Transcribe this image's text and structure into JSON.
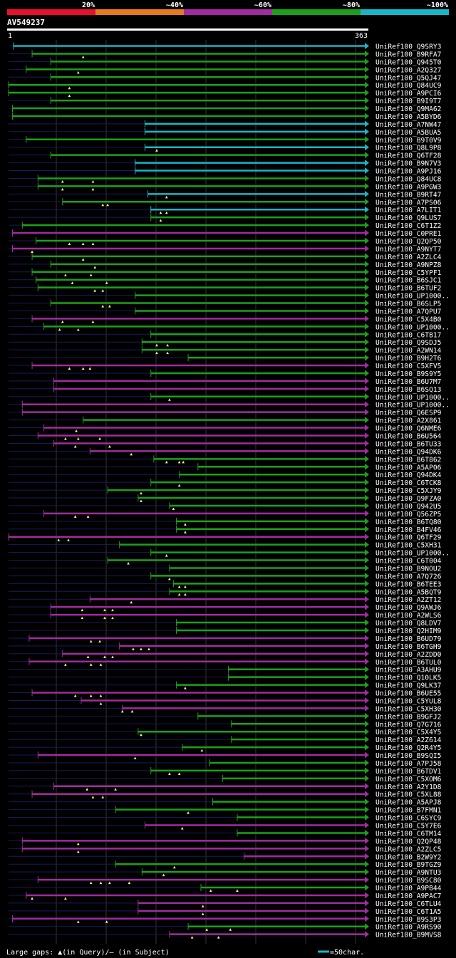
{
  "chart_data": {
    "type": "alignment-map",
    "title": "AV549237",
    "query_start_label": "1",
    "query_end_label": "363",
    "query_length": 363,
    "legend_bins": [
      {
        "label": "20%",
        "color": "#e8102a"
      },
      {
        "label": "~40%",
        "color": "#e67a1f"
      },
      {
        "label": "~60%",
        "color": "#a02ca0"
      },
      {
        "label": "~80%",
        "color": "#1ca01c"
      },
      {
        "label": "~100%",
        "color": "#19b6c6"
      }
    ],
    "colors": {
      "cyan": "#19b6c6",
      "green": "#1ca01c",
      "purple": "#a02ca0",
      "light_green": "#5fd05f",
      "marker": "#ffff88",
      "gap": "#1a1a60",
      "grid": "#333333"
    },
    "footer": {
      "gaps_text": "Large gaps: ▲(in Query)/— (in Subject)",
      "scale_text": "=50char."
    },
    "hits": [
      {
        "name": "UniRef100_Q9SRY3",
        "start": 5,
        "color": "cyan",
        "markers": []
      },
      {
        "name": "UniRef100_B9RFA7",
        "start": 24,
        "color": "green",
        "markers": [
          76
        ]
      },
      {
        "name": "UniRef100_Q945T0",
        "start": 43,
        "color": "green",
        "markers": []
      },
      {
        "name": "UniRef100_A2Q327",
        "start": 18,
        "color": "green",
        "markers": [
          71
        ]
      },
      {
        "name": "UniRef100_Q5QJ47",
        "start": 43,
        "color": "green",
        "markers": []
      },
      {
        "name": "UniRef100_Q84UC9",
        "start": 0,
        "color": "green",
        "markers": [
          62
        ]
      },
      {
        "name": "UniRef100_A9PCI6",
        "start": 0,
        "color": "green",
        "markers": [
          62
        ]
      },
      {
        "name": "UniRef100_B9I9T7",
        "start": 43,
        "color": "green",
        "markers": []
      },
      {
        "name": "UniRef100_Q9MA62",
        "start": 4,
        "color": "green",
        "markers": []
      },
      {
        "name": "UniRef100_A5BYD6",
        "start": 4,
        "color": "green",
        "markers": []
      },
      {
        "name": "UniRef100_A7NW47",
        "start": 139,
        "color": "cyan",
        "markers": []
      },
      {
        "name": "UniRef100_A5BUA5",
        "start": 139,
        "color": "cyan",
        "markers": []
      },
      {
        "name": "UniRef100_B9T0V9",
        "start": 18,
        "color": "green",
        "markers": []
      },
      {
        "name": "UniRef100_Q8L9P8",
        "start": 139,
        "color": "cyan",
        "markers": [
          151
        ]
      },
      {
        "name": "UniRef100_Q6TF28",
        "start": 43,
        "color": "green",
        "markers": []
      },
      {
        "name": "UniRef100_B9N7V3",
        "start": 129,
        "color": "cyan",
        "markers": []
      },
      {
        "name": "UniRef100_A9PJ16",
        "start": 129,
        "color": "cyan",
        "markers": []
      },
      {
        "name": "UniRef100_Q84UC8",
        "start": 30,
        "color": "green",
        "markers": [
          55,
          86
        ]
      },
      {
        "name": "UniRef100_A9PGW3",
        "start": 30,
        "color": "green",
        "markers": [
          55,
          86
        ]
      },
      {
        "name": "UniRef100_B9RT47",
        "start": 142,
        "color": "cyan",
        "markers": [
          161
        ]
      },
      {
        "name": "UniRef100_A7PS06",
        "start": 55,
        "color": "green",
        "markers": [
          96,
          101
        ]
      },
      {
        "name": "UniRef100_A7LIT1",
        "start": 145,
        "color": "cyan",
        "markers": [
          155,
          161
        ]
      },
      {
        "name": "UniRef100_Q9LUS7",
        "start": 145,
        "color": "green",
        "markers": [
          155
        ]
      },
      {
        "name": "UniRef100_C6T1Z2",
        "start": 14,
        "color": "green",
        "markers": []
      },
      {
        "name": "UniRef100_C0PRE1",
        "start": 4,
        "color": "purple",
        "markers": []
      },
      {
        "name": "UniRef100_Q2QP50",
        "start": 28,
        "color": "green",
        "markers": [
          62,
          76,
          86
        ]
      },
      {
        "name": "UniRef100_A9NYT7",
        "start": 4,
        "color": "purple",
        "markers": [
          24
        ]
      },
      {
        "name": "UniRef100_A2ZLC4",
        "start": 24,
        "color": "green",
        "markers": [
          76
        ]
      },
      {
        "name": "UniRef100_A9NPZ8",
        "start": 43,
        "color": "green",
        "markers": [
          88
        ]
      },
      {
        "name": "UniRef100_C5YPF1",
        "start": 24,
        "color": "green",
        "markers": [
          58,
          84
        ]
      },
      {
        "name": "UniRef100_B6SJC1",
        "start": 28,
        "color": "green",
        "markers": [
          65,
          100
        ]
      },
      {
        "name": "UniRef100_B6TUF2",
        "start": 30,
        "color": "green",
        "markers": [
          88,
          96
        ]
      },
      {
        "name": "UniRef100_UP1000..",
        "start": 129,
        "color": "green",
        "markers": []
      },
      {
        "name": "UniRef100_B6SLP5",
        "start": 43,
        "color": "green",
        "markers": [
          96,
          103
        ]
      },
      {
        "name": "UniRef100_A7QPU7",
        "start": 129,
        "color": "green",
        "markers": []
      },
      {
        "name": "UniRef100_C5X4B0",
        "start": 24,
        "color": "purple",
        "markers": [
          55,
          86
        ]
      },
      {
        "name": "UniRef100_UP1000..",
        "start": 36,
        "color": "green",
        "markers": [
          52,
          71
        ]
      },
      {
        "name": "UniRef100_C6TB17",
        "start": 145,
        "color": "green",
        "markers": []
      },
      {
        "name": "UniRef100_Q9SDJ5",
        "start": 136,
        "color": "green",
        "markers": [
          151,
          162
        ]
      },
      {
        "name": "UniRef100_A2WN14",
        "start": 136,
        "color": "green",
        "markers": [
          151,
          162
        ]
      },
      {
        "name": "UniRef100_B9H2T6",
        "start": 183,
        "color": "green",
        "markers": []
      },
      {
        "name": "UniRef100_C5XFV5",
        "start": 24,
        "color": "purple",
        "markers": [
          62,
          76,
          83
        ]
      },
      {
        "name": "UniRef100_B9S9Y5",
        "start": 145,
        "color": "green",
        "markers": []
      },
      {
        "name": "UniRef100_B6U7M7",
        "start": 46,
        "color": "purple",
        "markers": []
      },
      {
        "name": "UniRef100_B6SQ13",
        "start": 46,
        "color": "purple",
        "markers": []
      },
      {
        "name": "UniRef100_UP1000..",
        "start": 145,
        "color": "green",
        "markers": [
          164
        ]
      },
      {
        "name": "UniRef100_UP1000..",
        "start": 14,
        "color": "purple",
        "markers": []
      },
      {
        "name": "UniRef100_Q6ESP9",
        "start": 14,
        "color": "purple",
        "markers": []
      },
      {
        "name": "UniRef100_A2X861",
        "start": 76,
        "color": "green",
        "markers": []
      },
      {
        "name": "UniRef100_Q6NME6",
        "start": 36,
        "color": "purple",
        "markers": [
          69
        ]
      },
      {
        "name": "UniRef100_B6U564",
        "start": 30,
        "color": "purple",
        "markers": [
          58,
          71,
          93
        ]
      },
      {
        "name": "UniRef100_B6TU33",
        "start": 46,
        "color": "purple",
        "markers": [
          68,
          103
        ]
      },
      {
        "name": "UniRef100_Q94DK6",
        "start": 83,
        "color": "purple",
        "markers": [
          125
        ]
      },
      {
        "name": "UniRef100_B6T862",
        "start": 148,
        "color": "green",
        "markers": [
          161,
          174,
          178
        ]
      },
      {
        "name": "UniRef100_A5AP06",
        "start": 193,
        "color": "green",
        "markers": []
      },
      {
        "name": "UniRef100_Q94DK4",
        "start": 174,
        "color": "green",
        "markers": []
      },
      {
        "name": "UniRef100_C6TCK8",
        "start": 145,
        "color": "green",
        "markers": [
          174
        ]
      },
      {
        "name": "UniRef100_C5XJY9",
        "start": 101,
        "color": "green",
        "markers": [
          135
        ]
      },
      {
        "name": "UniRef100_Q9FZA0",
        "start": 132,
        "color": "green",
        "markers": [
          135
        ]
      },
      {
        "name": "UniRef100_Q942U5",
        "start": 164,
        "color": "green",
        "markers": [
          168
        ]
      },
      {
        "name": "UniRef100_Q56ZP5",
        "start": 36,
        "color": "purple",
        "markers": [
          68,
          81
        ]
      },
      {
        "name": "UniRef100_B6TQ80",
        "start": 171,
        "color": "green",
        "markers": [
          180
        ]
      },
      {
        "name": "UniRef100_B4FV46",
        "start": 171,
        "color": "green",
        "markers": [
          180
        ]
      },
      {
        "name": "UniRef100_Q6TF29",
        "start": 0,
        "color": "purple",
        "markers": [
          51,
          61
        ]
      },
      {
        "name": "UniRef100_C5XH31",
        "start": 113,
        "color": "green",
        "markers": []
      },
      {
        "name": "UniRef100_UP1000..",
        "start": 145,
        "color": "green",
        "markers": [
          161
        ]
      },
      {
        "name": "UniRef100_C6T004",
        "start": 101,
        "color": "green",
        "markers": [
          122
        ]
      },
      {
        "name": "UniRef100_B9NOU2",
        "start": 164,
        "color": "green",
        "markers": []
      },
      {
        "name": "UniRef100_A7Q726",
        "start": 145,
        "color": "green",
        "markers": [
          164
        ]
      },
      {
        "name": "UniRef100_B6TEE3",
        "start": 168,
        "color": "green",
        "markers": [
          174,
          180
        ]
      },
      {
        "name": "UniRef100_A5BQT9",
        "start": 164,
        "color": "green",
        "markers": [
          174,
          180
        ]
      },
      {
        "name": "UniRef100_A2ZT12",
        "start": 83,
        "color": "purple",
        "markers": [
          125
        ]
      },
      {
        "name": "UniRef100_Q9AWJ6",
        "start": 43,
        "color": "purple",
        "markers": [
          75,
          98,
          106
        ]
      },
      {
        "name": "UniRef100_A2WLS6",
        "start": 43,
        "color": "purple",
        "markers": [
          75,
          98,
          106
        ]
      },
      {
        "name": "UniRef100_Q8LDV7",
        "start": 171,
        "color": "green",
        "markers": []
      },
      {
        "name": "UniRef100_Q2HIM9",
        "start": 171,
        "color": "green",
        "markers": []
      },
      {
        "name": "UniRef100_B6UD79",
        "start": 21,
        "color": "purple",
        "markers": [
          84,
          93
        ]
      },
      {
        "name": "UniRef100_B6TGH9",
        "start": 113,
        "color": "purple",
        "markers": [
          127,
          135,
          143
        ]
      },
      {
        "name": "UniRef100_A2ZDD0",
        "start": 55,
        "color": "purple",
        "markers": [
          81,
          98,
          106
        ]
      },
      {
        "name": "UniRef100_B6TUL0",
        "start": 21,
        "color": "purple",
        "markers": [
          58,
          84,
          94
        ]
      },
      {
        "name": "UniRef100_A3AHU9",
        "start": 224,
        "color": "green",
        "markers": []
      },
      {
        "name": "UniRef100_Q10LK5",
        "start": 224,
        "color": "green",
        "markers": []
      },
      {
        "name": "UniRef100_Q9LK37",
        "start": 171,
        "color": "green",
        "markers": [
          180
        ]
      },
      {
        "name": "UniRef100_B6UE55",
        "start": 24,
        "color": "purple",
        "markers": [
          68,
          84,
          94
        ]
      },
      {
        "name": "UniRef100_C5YUL8",
        "start": 74,
        "color": "purple",
        "markers": [
          94
        ]
      },
      {
        "name": "UniRef100_C5XH30",
        "start": 116,
        "color": "purple",
        "markers": [
          116,
          126
        ]
      },
      {
        "name": "UniRef100_B9GFJ2",
        "start": 193,
        "color": "green",
        "markers": []
      },
      {
        "name": "UniRef100_Q7G716",
        "start": 227,
        "color": "green",
        "markers": []
      },
      {
        "name": "UniRef100_C5X4Y5",
        "start": 132,
        "color": "green",
        "markers": [
          135
        ]
      },
      {
        "name": "UniRef100_A2Z614",
        "start": 227,
        "color": "green",
        "markers": []
      },
      {
        "name": "UniRef100_Q2R4Y5",
        "start": 177,
        "color": "green",
        "markers": [
          197
        ]
      },
      {
        "name": "UniRef100_B9SQI5",
        "start": 30,
        "color": "purple",
        "markers": [
          129
        ]
      },
      {
        "name": "UniRef100_A7PJ58",
        "start": 205,
        "color": "green",
        "markers": []
      },
      {
        "name": "UniRef100_B6TDV1",
        "start": 145,
        "color": "green",
        "markers": [
          164,
          174
        ]
      },
      {
        "name": "UniRef100_C5XOM6",
        "start": 218,
        "color": "green",
        "markers": []
      },
      {
        "name": "UniRef100_A2Y1D8",
        "start": 46,
        "color": "purple",
        "markers": [
          80,
          109
        ]
      },
      {
        "name": "UniRef100_C5XL88",
        "start": 24,
        "color": "purple",
        "markers": [
          86,
          96
        ]
      },
      {
        "name": "UniRef100_A5APJ8",
        "start": 208,
        "color": "green",
        "markers": []
      },
      {
        "name": "UniRef100_B7FMN1",
        "start": 109,
        "color": "green",
        "markers": [
          183
        ]
      },
      {
        "name": "UniRef100_C6SYC9",
        "start": 233,
        "color": "green",
        "markers": []
      },
      {
        "name": "UniRef100_C5Y7E6",
        "start": 139,
        "color": "purple",
        "markers": [
          177
        ]
      },
      {
        "name": "UniRef100_C6TM14",
        "start": 233,
        "color": "green",
        "markers": []
      },
      {
        "name": "UniRef100_Q2QP48",
        "start": 14,
        "color": "purple",
        "markers": [
          71
        ]
      },
      {
        "name": "UniRef100_A2ZLC5",
        "start": 14,
        "color": "purple",
        "markers": [
          71
        ]
      },
      {
        "name": "UniRef100_B2W9Y2",
        "start": 240,
        "color": "purple",
        "markers": []
      },
      {
        "name": "UniRef100_B9TGZ9",
        "start": 109,
        "color": "green",
        "markers": [
          169
        ]
      },
      {
        "name": "UniRef100_A9NTU3",
        "start": 136,
        "color": "green",
        "markers": [
          158
        ]
      },
      {
        "name": "UniRef100_B9SC80",
        "start": 30,
        "color": "purple",
        "markers": [
          84,
          94,
          103,
          123
        ]
      },
      {
        "name": "UniRef100_A9PB44",
        "start": 196,
        "color": "green",
        "markers": [
          206,
          233
        ]
      },
      {
        "name": "UniRef100_A9PAC7",
        "start": 18,
        "color": "purple",
        "markers": [
          24,
          58
        ]
      },
      {
        "name": "UniRef100_C6TLU4",
        "start": 132,
        "color": "purple",
        "markers": [
          198
        ]
      },
      {
        "name": "UniRef100_C6T1A5",
        "start": 132,
        "color": "purple",
        "markers": [
          198
        ]
      },
      {
        "name": "UniRef100_B9S3P3",
        "start": 4,
        "color": "purple",
        "markers": [
          71,
          100
        ]
      },
      {
        "name": "UniRef100_A9RS90",
        "start": 183,
        "color": "green",
        "markers": [
          202,
          226
        ]
      },
      {
        "name": "UniRef100_B9MVS8",
        "start": 164,
        "color": "purple",
        "markers": [
          187,
          214
        ]
      }
    ]
  }
}
